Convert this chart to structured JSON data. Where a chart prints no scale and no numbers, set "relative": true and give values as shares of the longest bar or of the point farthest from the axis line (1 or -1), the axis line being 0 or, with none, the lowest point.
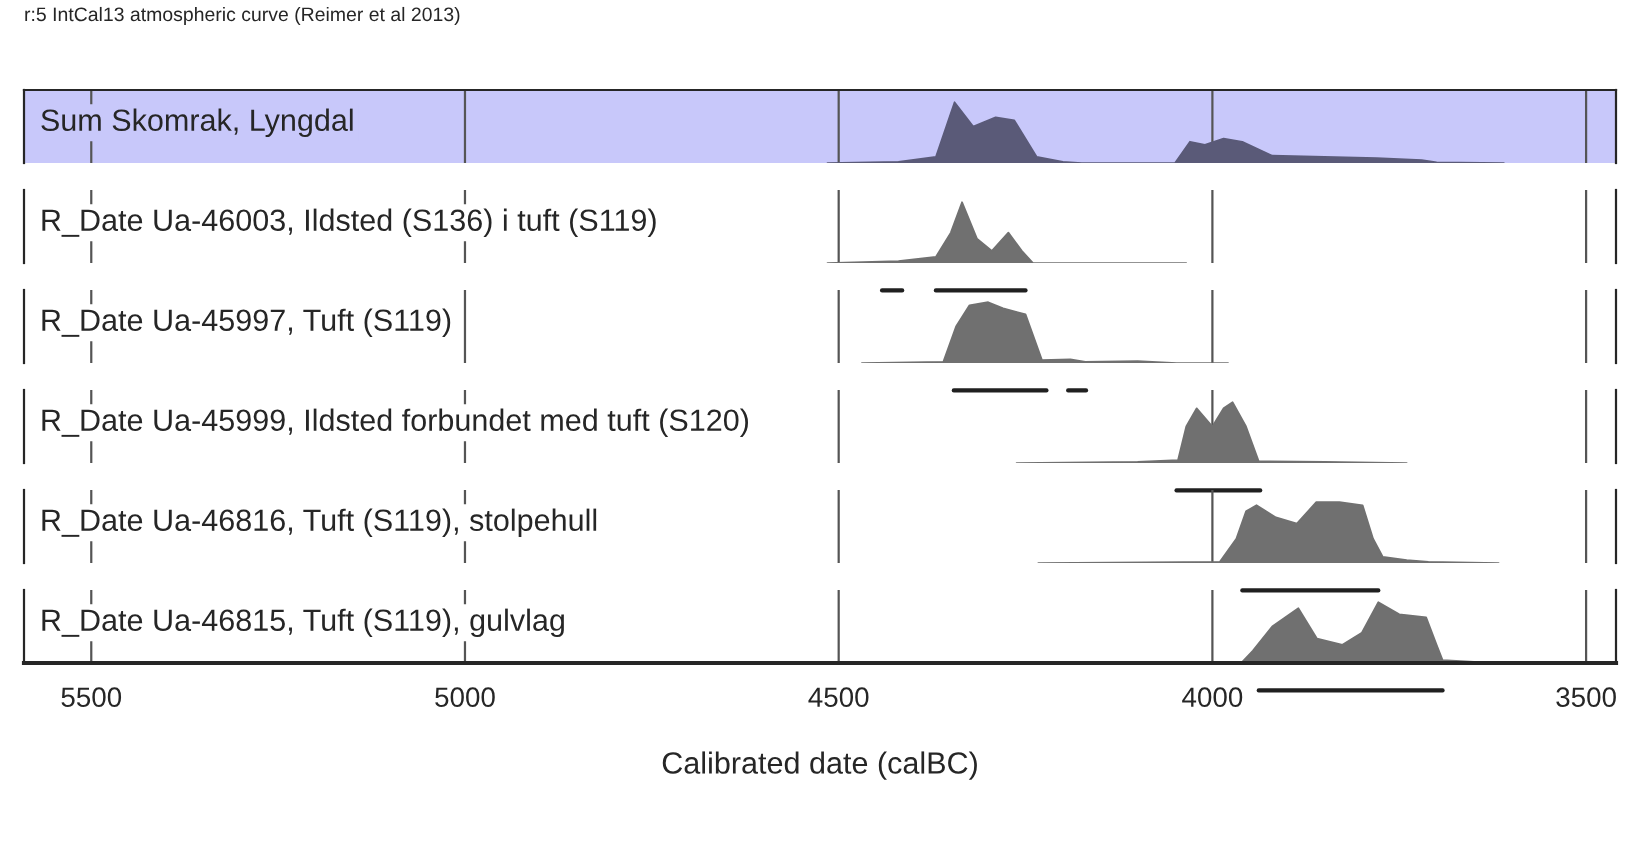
{
  "chart_data": [
    {
      "type": "area",
      "title": "Sum Skomrak, Lyngdal",
      "relative": true,
      "xlim": [
        5590,
        3460
      ],
      "tick_labels": false,
      "grid": "x",
      "legend": false,
      "xticks": [
        5500,
        5000,
        4500,
        4000,
        3500
      ],
      "annotations": [
        "r:5 IntCal13 atmospheric curve (Reimer et al 2013)"
      ],
      "bands": [
        {
          "axis": "x",
          "from": 5590,
          "to": 3460,
          "color": "#c8c8fa"
        }
      ],
      "series": [
        {
          "color": "#5a5a78",
          "x": [
            4515,
            4420,
            4370,
            4345,
            4320,
            4290,
            4265,
            4235,
            4200,
            4175,
            4050,
            4030,
            4010,
            3985,
            3960,
            3920,
            3850,
            3780,
            3720,
            3700,
            3610
          ],
          "values": [
            0,
            0.02,
            0.1,
            1.0,
            0.6,
            0.75,
            0.7,
            0.1,
            0.02,
            0,
            0,
            0.35,
            0.3,
            0.4,
            0.35,
            0.12,
            0.1,
            0.08,
            0.05,
            0.01,
            0
          ]
        }
      ]
    },
    {
      "type": "area",
      "title": "R_Date Ua-46003, Ildsted (S136) i tuft (S119)",
      "relative": true,
      "xlim": [
        5590,
        3460
      ],
      "tick_labels": false,
      "grid": "x",
      "legend": false,
      "xticks": [
        5500,
        5000,
        4500,
        4000,
        3500
      ],
      "series": [
        {
          "color": "#707070",
          "x": [
            4515,
            4420,
            4370,
            4350,
            4335,
            4315,
            4295,
            4273,
            4255,
            4240,
            4035
          ],
          "values": [
            0,
            0.03,
            0.1,
            0.5,
            1.0,
            0.4,
            0.2,
            0.5,
            0.2,
            0,
            0
          ]
        },
        {
          "type": "line",
          "color": "#202020",
          "x": [
            4442,
            4415
          ],
          "values": [
            -0.45,
            -0.45
          ]
        },
        {
          "type": "line",
          "color": "#202020",
          "x": [
            4370,
            4250
          ],
          "values": [
            -0.45,
            -0.45
          ]
        }
      ]
    },
    {
      "type": "area",
      "title": "R_Date Ua-45997, Tuft (S119)",
      "relative": true,
      "xlim": [
        5590,
        3460
      ],
      "tick_labels": false,
      "grid": "x",
      "legend": false,
      "xticks": [
        5500,
        5000,
        4500,
        4000,
        3500
      ],
      "series": [
        {
          "color": "#707070",
          "x": [
            4469,
            4360,
            4343,
            4325,
            4300,
            4280,
            4250,
            4228,
            4190,
            4170,
            4100,
            4048,
            3979
          ],
          "values": [
            0,
            0.02,
            0.6,
            0.95,
            1.0,
            0.9,
            0.8,
            0.05,
            0.06,
            0.02,
            0.03,
            0,
            0
          ]
        },
        {
          "type": "line",
          "color": "#202020",
          "x": [
            4346,
            4222
          ],
          "values": [
            -0.45,
            -0.45
          ]
        },
        {
          "type": "line",
          "color": "#202020",
          "x": [
            4193,
            4169
          ],
          "values": [
            -0.45,
            -0.45
          ]
        }
      ]
    },
    {
      "type": "area",
      "title": "R_Date Ua-45999, Ildsted forbundet med tuft (S120)",
      "relative": true,
      "xlim": [
        5590,
        3460
      ],
      "tick_labels": false,
      "grid": "x",
      "legend": false,
      "xticks": [
        5500,
        5000,
        4500,
        4000,
        3500
      ],
      "series": [
        {
          "color": "#707070",
          "x": [
            4262,
            4100,
            4046,
            4035,
            4021,
            4000,
            3985,
            3973,
            3955,
            3938,
            3850,
            3740
          ],
          "values": [
            0,
            0.02,
            0.05,
            0.6,
            0.9,
            0.6,
            0.9,
            1.0,
            0.6,
            0.03,
            0.02,
            0
          ]
        },
        {
          "type": "line",
          "color": "#202020",
          "x": [
            4048,
            3936
          ],
          "values": [
            -0.45,
            -0.45
          ]
        }
      ]
    },
    {
      "type": "area",
      "title": "R_Date Ua-46816, Tuft (S119), stolpehull",
      "relative": true,
      "xlim": [
        5590,
        3460
      ],
      "tick_labels": false,
      "grid": "x",
      "legend": false,
      "xticks": [
        5500,
        5000,
        4500,
        4000,
        3500
      ],
      "series": [
        {
          "color": "#707070",
          "x": [
            4233,
            3990,
            3968,
            3955,
            3941,
            3915,
            3887,
            3861,
            3830,
            3799,
            3785,
            3772,
            3740,
            3711,
            3617
          ],
          "values": [
            0,
            0.02,
            0.4,
            0.85,
            0.95,
            0.75,
            0.65,
            1.0,
            1.0,
            0.95,
            0.4,
            0.1,
            0.05,
            0.02,
            0
          ]
        },
        {
          "type": "line",
          "color": "#202020",
          "x": [
            3960,
            3778
          ],
          "values": [
            -0.45,
            -0.45
          ]
        }
      ]
    },
    {
      "type": "area",
      "title": "R_Date Ua-46815, Tuft (S119), gulvlag",
      "relative": true,
      "xlim": [
        5590,
        3460
      ],
      "tick_labels": "x",
      "grid": "x",
      "legend": false,
      "xlabel": "Calibrated date (calBC)",
      "xticks": [
        5500,
        5000,
        4500,
        4000,
        3500
      ],
      "series": [
        {
          "color": "#707070",
          "x": [
            4040,
            3960,
            3946,
            3920,
            3885,
            3860,
            3826,
            3800,
            3778,
            3750,
            3714,
            3700,
            3692,
            3650,
            3526
          ],
          "values": [
            0,
            0.02,
            0.2,
            0.6,
            0.9,
            0.4,
            0.3,
            0.5,
            1.0,
            0.8,
            0.75,
            0.3,
            0.05,
            0.02,
            0
          ]
        },
        {
          "type": "line",
          "color": "#202020",
          "x": [
            3938,
            3692
          ],
          "values": [
            -0.45,
            -0.45
          ]
        }
      ]
    }
  ]
}
